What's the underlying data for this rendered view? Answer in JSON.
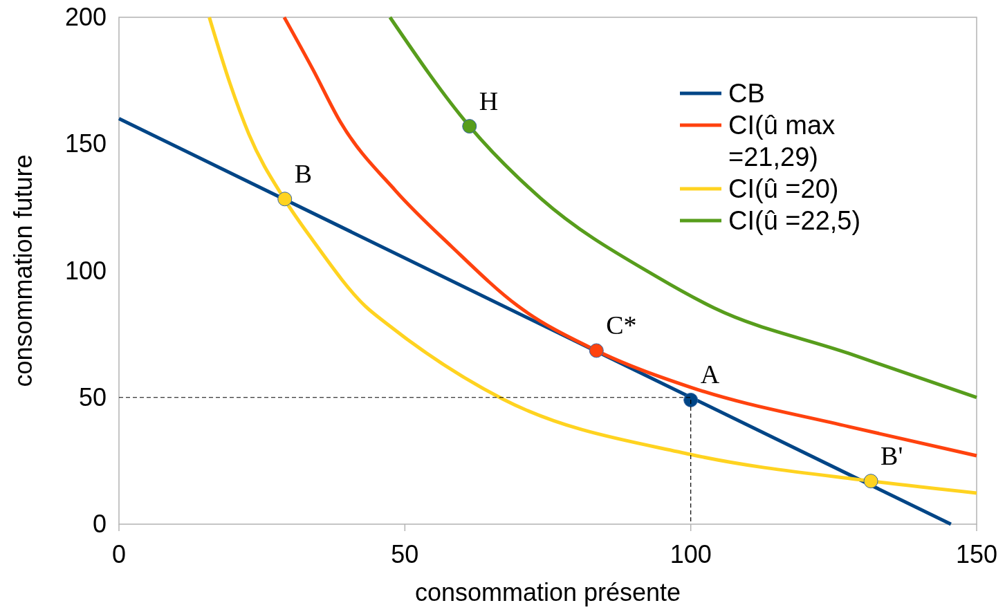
{
  "chart_data": {
    "type": "line",
    "xlabel": "consommation présente",
    "ylabel": "consommation future",
    "xlim": [
      0,
      150
    ],
    "xticks": [
      0,
      50,
      100,
      150
    ],
    "ylim": [
      0,
      200
    ],
    "yticks": [
      0,
      50,
      100,
      150,
      200
    ],
    "grid": false,
    "legend": "top right",
    "series": [
      {
        "name": "CB",
        "color": "#004586",
        "x": [
          0,
          145.5
        ],
        "values": [
          160,
          0
        ]
      },
      {
        "name": "CI(û max =21,29)",
        "color": "#ff420e",
        "x": [
          28.9,
          33.9,
          38.7,
          48.4,
          58.1,
          69.7,
          83.5,
          100,
          127.6,
          150
        ],
        "values": [
          200,
          179.5,
          158.8,
          131.5,
          109.7,
          86.2,
          68.5,
          54,
          38.5,
          27
        ]
      },
      {
        "name": "CI(û =20)",
        "color": "#ffd320",
        "x": [
          15.8,
          19.4,
          22.7,
          29,
          33.9,
          43.1,
          46.9,
          67.1,
          100,
          131.5,
          150
        ],
        "values": [
          200,
          174,
          154,
          128,
          112,
          86,
          79,
          49.4,
          27.5,
          17,
          12.3
        ]
      },
      {
        "name": "CI(û =22,5)",
        "color": "#579d1c",
        "x": [
          47.4,
          61.3,
          73.8,
          94,
          104,
          127.6,
          150
        ],
        "values": [
          200,
          157,
          128.5,
          97.7,
          85.4,
          67.4,
          50
        ]
      },
      {
        "type": "line",
        "line_style": "dashed",
        "color": "#000000",
        "x": [
          0,
          100,
          100
        ],
        "values": [
          50,
          50,
          0
        ]
      },
      {
        "type": "scatter",
        "marker": "circle",
        "color": "#ffd320",
        "x": [
          29,
          131.5
        ],
        "values": [
          128.3,
          17
        ]
      },
      {
        "type": "scatter",
        "marker": "circle",
        "color": "#579d1c",
        "x": [
          61.3
        ],
        "values": [
          157
        ]
      },
      {
        "type": "scatter",
        "marker": "circle",
        "color": "#ff420e",
        "x": [
          83.5
        ],
        "values": [
          68.5
        ]
      },
      {
        "type": "scatter",
        "marker": "circle",
        "color": "#004586",
        "x": [
          100
        ],
        "values": [
          49
        ]
      }
    ],
    "annotations": [
      {
        "text": "B",
        "x": 29,
        "y": 128.3
      },
      {
        "text": "H",
        "x": 61.3,
        "y": 157
      },
      {
        "text": "C*",
        "x": 83.5,
        "y": 68.5
      },
      {
        "text": "A",
        "x": 100,
        "y": 49
      },
      {
        "text": "B'",
        "x": 131.5,
        "y": 17
      }
    ]
  }
}
